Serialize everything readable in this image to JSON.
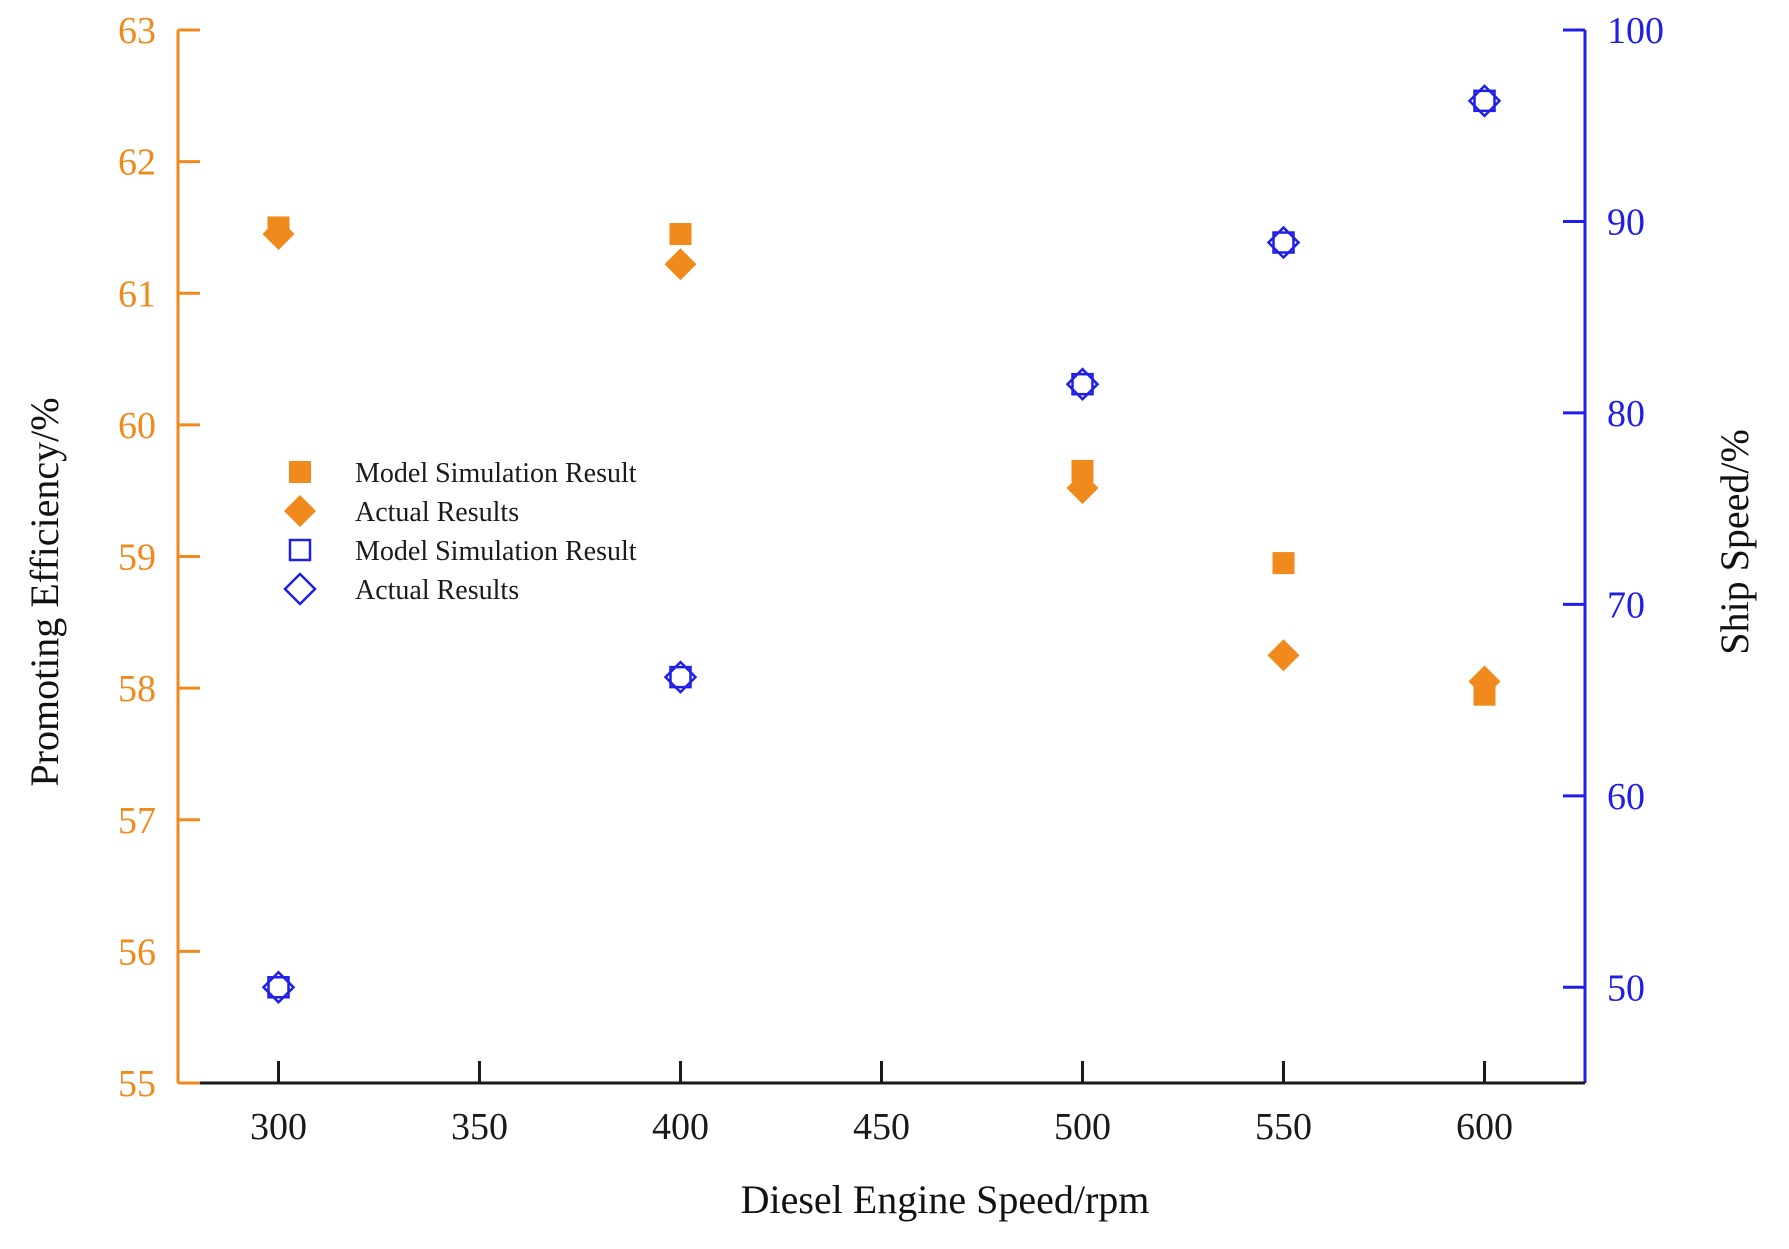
{
  "chart_data": {
    "type": "scatter",
    "title": "",
    "xlabel": "Diesel Engine Speed/rpm",
    "ylabel_left": "Promoting Efficiency/%",
    "ylabel_right": "Ship Speed/%",
    "xlim": [
      275,
      625
    ],
    "x_ticks": [
      300,
      350,
      400,
      450,
      500,
      550,
      600
    ],
    "ylim_left": [
      55,
      63
    ],
    "y_ticks_left": [
      55,
      56,
      57,
      58,
      59,
      60,
      61,
      62,
      63
    ],
    "ylim_right": [
      45,
      100
    ],
    "y_ticks_right": [
      50,
      60,
      70,
      80,
      90,
      100
    ],
    "legend_position": "center-left",
    "colors": {
      "efficiency": "#f08a1c",
      "ship_speed": "#1f1fe8",
      "x_axis": "#1a1a1a"
    },
    "series": [
      {
        "name": "Model Simulation Result",
        "axis": "left",
        "marker": "filled-square",
        "color": "#f08a1c",
        "x": [
          300,
          400,
          500,
          550,
          600
        ],
        "y": [
          61.5,
          61.45,
          59.65,
          58.95,
          57.95
        ]
      },
      {
        "name": "Actual Results",
        "axis": "left",
        "marker": "filled-diamond",
        "color": "#f08a1c",
        "x": [
          300,
          400,
          500,
          550,
          600
        ],
        "y": [
          61.45,
          61.22,
          59.52,
          58.25,
          58.05
        ]
      },
      {
        "name": "Model Simulation Result",
        "axis": "right",
        "marker": "open-square",
        "color": "#1f1fe8",
        "x": [
          300,
          400,
          500,
          550,
          600
        ],
        "y": [
          50.0,
          66.2,
          81.5,
          88.9,
          96.3
        ]
      },
      {
        "name": "Actual Results",
        "axis": "right",
        "marker": "open-diamond",
        "color": "#1f1fe8",
        "x": [
          300,
          400,
          500,
          550,
          600
        ],
        "y": [
          50.0,
          66.2,
          81.5,
          88.9,
          96.3
        ]
      }
    ]
  }
}
